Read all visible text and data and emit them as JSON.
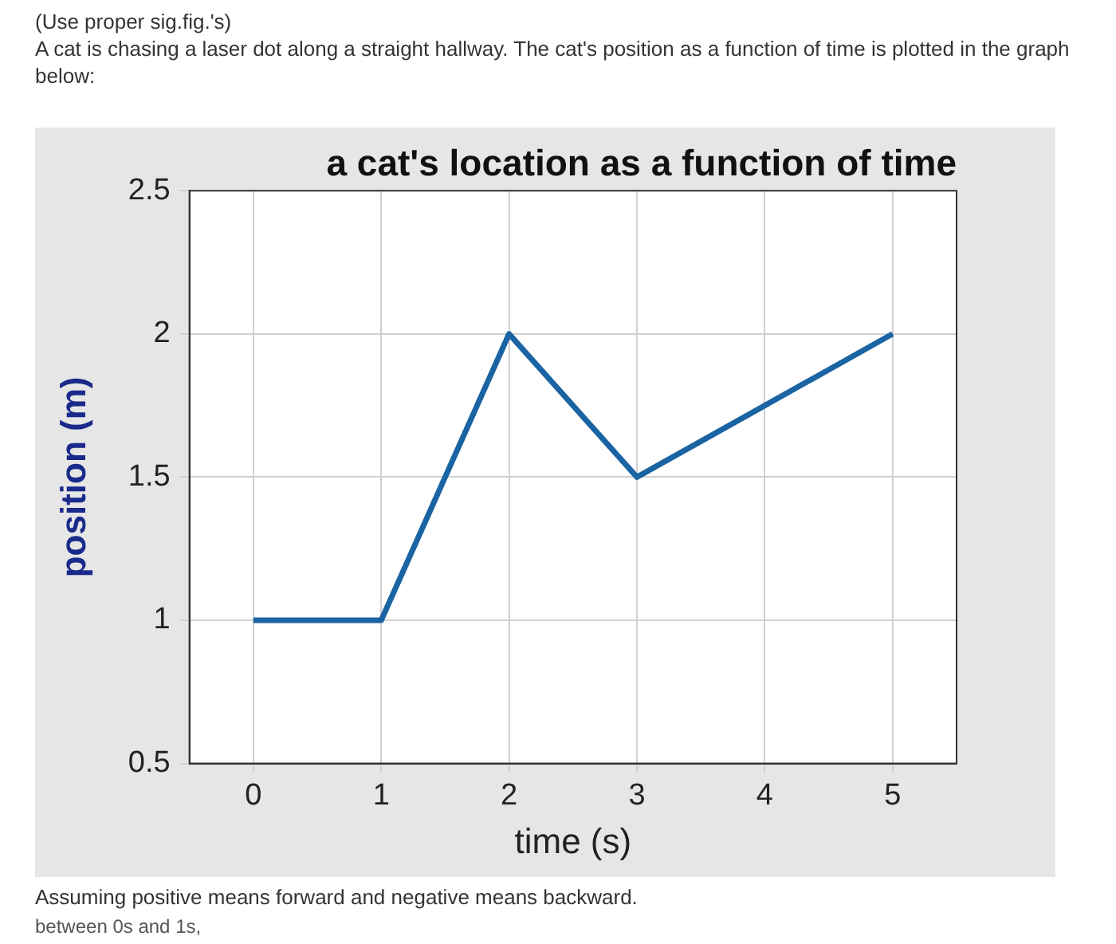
{
  "chart_data": {
    "type": "line",
    "title": "a cat's location as a function of time",
    "xlabel": "time (s)",
    "ylabel": "position (m)",
    "annotations": [
      "(Use proper sig.fig.'s)",
      "A cat is chasing a laser dot along a straight hallway. The cat's position as a function of time is plotted in the graph below:",
      "Assuming positive means forward and negative means backward.",
      "between 0s and 1s,"
    ],
    "x": [
      0,
      1,
      2,
      3,
      4,
      5
    ],
    "series": [
      {
        "color": "#1b64a3",
        "values": [
          1,
          1,
          2,
          1.5,
          1.75,
          2
        ]
      }
    ],
    "xlim": [
      -0.5,
      5.5
    ],
    "xticks": [
      0,
      1,
      2,
      3,
      4,
      5
    ],
    "ylim": [
      0.5,
      2.5
    ],
    "yticks": [
      0.5,
      1,
      1.5,
      2,
      2.5
    ],
    "grid": true,
    "marker": "none",
    "line_style": "solid",
    "legend": false
  }
}
